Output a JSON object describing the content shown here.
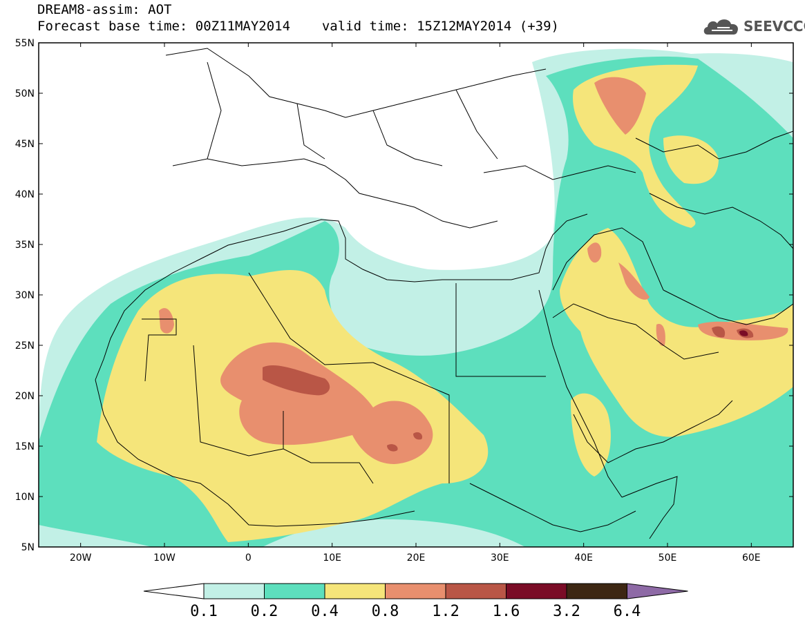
{
  "header": {
    "title": "DREAM8-assim: AOT",
    "forecast_base": "Forecast base time: 00Z11MAY2014",
    "valid_time": "valid time: 15Z12MAY2014 (+39)"
  },
  "logo": {
    "text": "SEEVCCC",
    "icon": "cloud-icon"
  },
  "map": {
    "projection": "cylindrical equidistant",
    "lon_range": [
      -25,
      65
    ],
    "lat_range": [
      5,
      55
    ],
    "lat_labels": [
      "55N",
      "50N",
      "45N",
      "40N",
      "35N",
      "30N",
      "25N",
      "20N",
      "15N",
      "10N",
      "5N"
    ],
    "lon_labels": [
      "20W",
      "10W",
      "0",
      "10E",
      "20E",
      "30E",
      "40E",
      "50E",
      "60E"
    ]
  },
  "colorbar": {
    "labels": [
      "0.1",
      "0.2",
      "0.4",
      "0.8",
      "1.2",
      "1.6",
      "3.2",
      "6.4"
    ],
    "colors": [
      "#ffffff",
      "#c2f0e6",
      "#5ddfbd",
      "#f5e57a",
      "#e88f6e",
      "#b95646",
      "#7a0c26",
      "#3d2713",
      "#8e6aa6"
    ]
  },
  "chart_data": {
    "type": "heatmap",
    "variable": "AOT",
    "xlim": [
      -25,
      65
    ],
    "ylim": [
      5,
      55
    ],
    "bins": [
      0.1,
      0.2,
      0.4,
      0.8,
      1.2,
      1.6,
      3.2,
      6.4
    ],
    "hotspots": [
      {
        "lon": 6,
        "lat": 22,
        "level": 1.6
      },
      {
        "lon": 18,
        "lat": 15,
        "level": 1.6
      },
      {
        "lon": 58,
        "lat": 26,
        "level": 1.6
      },
      {
        "lon": 56,
        "lat": 27,
        "level": 1.6
      },
      {
        "lon": 39,
        "lat": 50,
        "level": 1.2
      },
      {
        "lon": 46,
        "lat": 32,
        "level": 1.2
      }
    ]
  }
}
